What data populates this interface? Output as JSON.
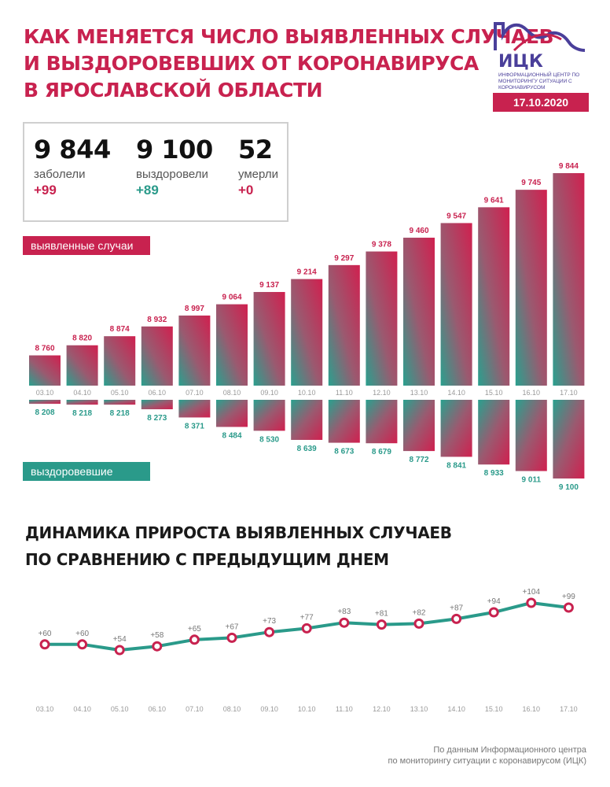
{
  "title": {
    "line1": "КАК МЕНЯЕТСЯ ЧИСЛО ВЫЯВЛЕННЫХ СЛУЧАЕВ",
    "line2": "И ВЫЗДОРОВЕВШИХ ОТ КОРОНАВИРУСА",
    "line3": "В ЯРОСЛАВСКОЙ ОБЛАСТИ"
  },
  "logo": {
    "abbr": "ИЦК",
    "subtitle": "ИНФОРМАЦИОННЫЙ ЦЕНТР ПО МОНИТОРИНГУ СИТУАЦИИ С КОРОНАВИРУСОМ"
  },
  "date": "17.10.2020",
  "stats": {
    "cases": {
      "value": "9 844",
      "label": "заболели",
      "delta": "+99"
    },
    "recovered": {
      "value": "9 100",
      "label": "выздоровели",
      "delta": "+89"
    },
    "deaths": {
      "value": "52",
      "label": "умерли",
      "delta": "+0"
    }
  },
  "labels": {
    "cases": "выявленные случаи",
    "recovered": "выздоровевшие"
  },
  "subtitle": {
    "line1": "ДИНАМИКА ПРИРОСТА ВЫЯВЛЕННЫХ СЛУЧАЕВ",
    "line2": "ПО СРАВНЕНИЮ С ПРЕДЫДУЩИМ ДНЕМ"
  },
  "footer": {
    "line1": "По данным Информационного центра",
    "line2": "по мониторингу ситуации с коронавирусом (ИЦК)"
  },
  "colors": {
    "primary": "#c8224f",
    "teal": "#2a9a8a",
    "logo": "#4a3f9a"
  },
  "chart_data": [
    {
      "type": "bar",
      "categories": [
        "03.10",
        "04.10",
        "05.10",
        "06.10",
        "07.10",
        "08.10",
        "09.10",
        "10.10",
        "11.10",
        "12.10",
        "13.10",
        "14.10",
        "15.10",
        "16.10",
        "17.10"
      ],
      "series": [
        {
          "name": "выявленные случаи",
          "values": [
            8760,
            8820,
            8874,
            8932,
            8997,
            9064,
            9137,
            9214,
            9297,
            9378,
            9460,
            9547,
            9641,
            9745,
            9844
          ],
          "labels": [
            "8 760",
            "8 820",
            "8 874",
            "8 932",
            "8 997",
            "9 064",
            "9 137",
            "9 214",
            "9 297",
            "9 378",
            "9 460",
            "9 547",
            "9 641",
            "9 745",
            "9 844"
          ]
        },
        {
          "name": "выздоровевшие",
          "values": [
            8208,
            8218,
            8218,
            8273,
            8371,
            8484,
            8530,
            8639,
            8673,
            8679,
            8772,
            8841,
            8933,
            9011,
            9100
          ],
          "labels": [
            "8 208",
            "8 218",
            "8 218",
            "8 273",
            "8 371",
            "8 484",
            "8 530",
            "8 639",
            "8 673",
            "8 679",
            "8 772",
            "8 841",
            "8 933",
            "9 011",
            "9 100"
          ]
        }
      ]
    },
    {
      "type": "line",
      "x": [
        "03.10",
        "04.10",
        "05.10",
        "06.10",
        "07.10",
        "08.10",
        "09.10",
        "10.10",
        "11.10",
        "12.10",
        "13.10",
        "14.10",
        "15.10",
        "16.10",
        "17.10"
      ],
      "series": [
        {
          "values": [
            60,
            60,
            54,
            58,
            65,
            67,
            73,
            77,
            83,
            81,
            82,
            87,
            94,
            104,
            99
          ],
          "labels": [
            "+60",
            "+60",
            "+54",
            "+58",
            "+65",
            "+67",
            "+73",
            "+77",
            "+83",
            "+81",
            "+82",
            "+87",
            "+94",
            "+104",
            "+99"
          ]
        }
      ]
    }
  ]
}
